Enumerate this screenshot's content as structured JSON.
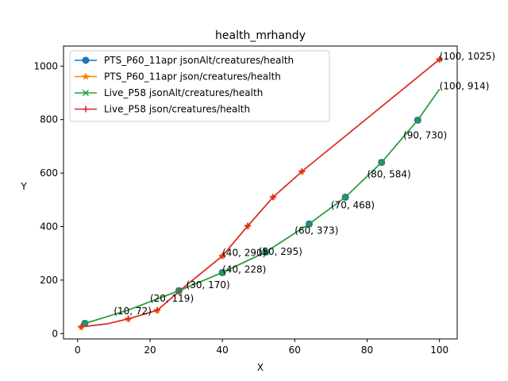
{
  "chart_data": {
    "type": "line",
    "title": "health_mrhandy",
    "xlabel": "X",
    "ylabel": "Y",
    "xlim": [
      -3.9,
      104.9
    ],
    "ylim": [
      -20,
      1075
    ],
    "xticks": [
      0,
      20,
      40,
      60,
      80,
      100
    ],
    "yticks": [
      0,
      200,
      400,
      600,
      800,
      1000
    ],
    "grid": false,
    "legend_position": "top-left",
    "series": [
      {
        "name": "PTS_P60_11apr jsonAlt/creatures/health",
        "color": "#1f77b4",
        "marker": "circle",
        "x": [
          2,
          14,
          28,
          40,
          52,
          64,
          74,
          84,
          94,
          100
        ],
        "y": [
          38,
          88,
          160,
          228,
          305,
          410,
          510,
          640,
          798,
          914
        ],
        "marker_x": [
          2,
          28,
          40,
          52,
          64,
          74,
          84,
          94
        ]
      },
      {
        "name": "PTS_P60_11apr json/creatures/health",
        "color": "#ff7f0e",
        "marker": "star",
        "x": [
          1,
          8,
          14,
          22,
          30,
          40,
          47,
          54,
          62,
          100
        ],
        "y": [
          25,
          36,
          55,
          87,
          180,
          290,
          402,
          510,
          606,
          1025
        ],
        "marker_x": [
          1,
          14,
          22,
          40,
          47,
          54,
          62,
          100
        ]
      },
      {
        "name": "Live_P58 jsonAlt/creatures/health",
        "color": "#2ca02c",
        "marker": "x",
        "x": [
          2,
          14,
          28,
          40,
          52,
          64,
          74,
          84,
          94,
          100
        ],
        "y": [
          38,
          88,
          160,
          228,
          305,
          410,
          510,
          640,
          798,
          914
        ],
        "marker_x": [
          2,
          28,
          40,
          52,
          64,
          74,
          84,
          94
        ]
      },
      {
        "name": "Live_P58 json/creatures/health",
        "color": "#d62728",
        "marker": "plus",
        "x": [
          1,
          8,
          14,
          22,
          30,
          40,
          47,
          54,
          62,
          100
        ],
        "y": [
          25,
          36,
          55,
          87,
          180,
          290,
          402,
          510,
          606,
          1025
        ],
        "marker_x": [
          1,
          14,
          22,
          40,
          47,
          54,
          62,
          100
        ]
      }
    ],
    "annotations": [
      {
        "text": "(100, 1025)",
        "x": 100,
        "y": 1025
      },
      {
        "text": "(100, 914)",
        "x": 100,
        "y": 914
      },
      {
        "text": "(90, 730)",
        "x": 90,
        "y": 730
      },
      {
        "text": "(80, 584)",
        "x": 80,
        "y": 584
      },
      {
        "text": "(70, 468)",
        "x": 70,
        "y": 468
      },
      {
        "text": "(60, 373)",
        "x": 60,
        "y": 373
      },
      {
        "text": "(50, 295)",
        "x": 50,
        "y": 295
      },
      {
        "text": "(40, 290)",
        "x": 40,
        "y": 290
      },
      {
        "text": "(40, 228)",
        "x": 40,
        "y": 228
      },
      {
        "text": "(30, 170)",
        "x": 30,
        "y": 170
      },
      {
        "text": "(20, 119)",
        "x": 20,
        "y": 119
      },
      {
        "text": "(10, 72)",
        "x": 10,
        "y": 72
      }
    ]
  }
}
